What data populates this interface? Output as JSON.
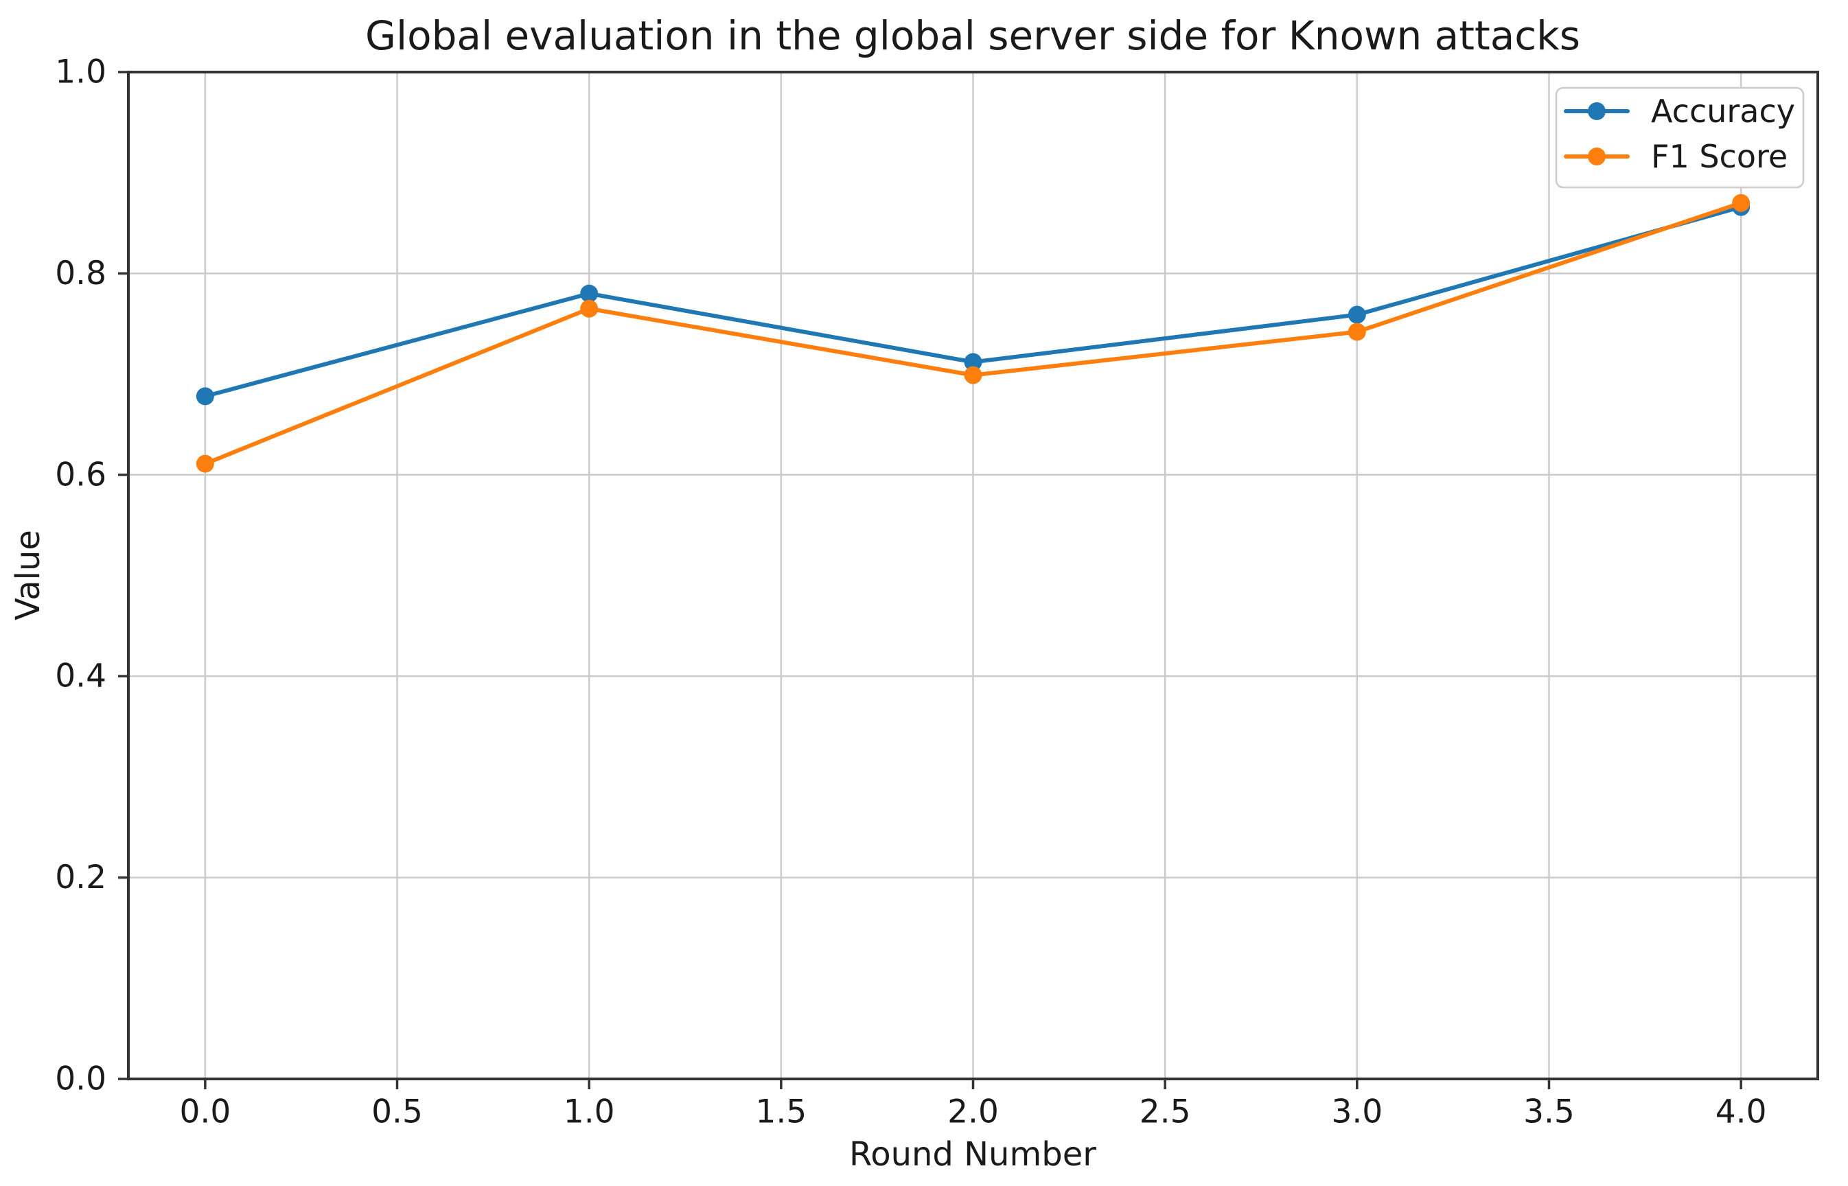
{
  "chart_data": {
    "type": "line",
    "title": "Global evaluation in the global server side for Known attacks",
    "xlabel": "Round Number",
    "ylabel": "Value",
    "x": [
      0,
      1,
      2,
      3,
      4
    ],
    "series": [
      {
        "name": "Accuracy",
        "color": "#1f77b4",
        "values": [
          0.678,
          0.78,
          0.712,
          0.759,
          0.866
        ]
      },
      {
        "name": "F1 Score",
        "color": "#ff7f0e",
        "values": [
          0.611,
          0.765,
          0.699,
          0.742,
          0.87
        ]
      }
    ],
    "xlim": [
      -0.2,
      4.2
    ],
    "ylim": [
      0.0,
      1.0
    ],
    "x_ticks": [
      {
        "value": 0.0,
        "label": "0.0"
      },
      {
        "value": 0.5,
        "label": "0.5"
      },
      {
        "value": 1.0,
        "label": "1.0"
      },
      {
        "value": 1.5,
        "label": "1.5"
      },
      {
        "value": 2.0,
        "label": "2.0"
      },
      {
        "value": 2.5,
        "label": "2.5"
      },
      {
        "value": 3.0,
        "label": "3.0"
      },
      {
        "value": 3.5,
        "label": "3.5"
      },
      {
        "value": 4.0,
        "label": "4.0"
      }
    ],
    "y_ticks": [
      {
        "value": 0.0,
        "label": "0.0"
      },
      {
        "value": 0.2,
        "label": "0.2"
      },
      {
        "value": 0.4,
        "label": "0.4"
      },
      {
        "value": 0.6,
        "label": "0.6"
      },
      {
        "value": 0.8,
        "label": "0.8"
      },
      {
        "value": 1.0,
        "label": "1.0"
      }
    ],
    "grid": true,
    "legend_position": "upper right",
    "colors": {
      "grid": "#cbcbcb",
      "spine": "#333333",
      "legend_border": "#cccccc",
      "legend_background": "#ffffff"
    }
  }
}
